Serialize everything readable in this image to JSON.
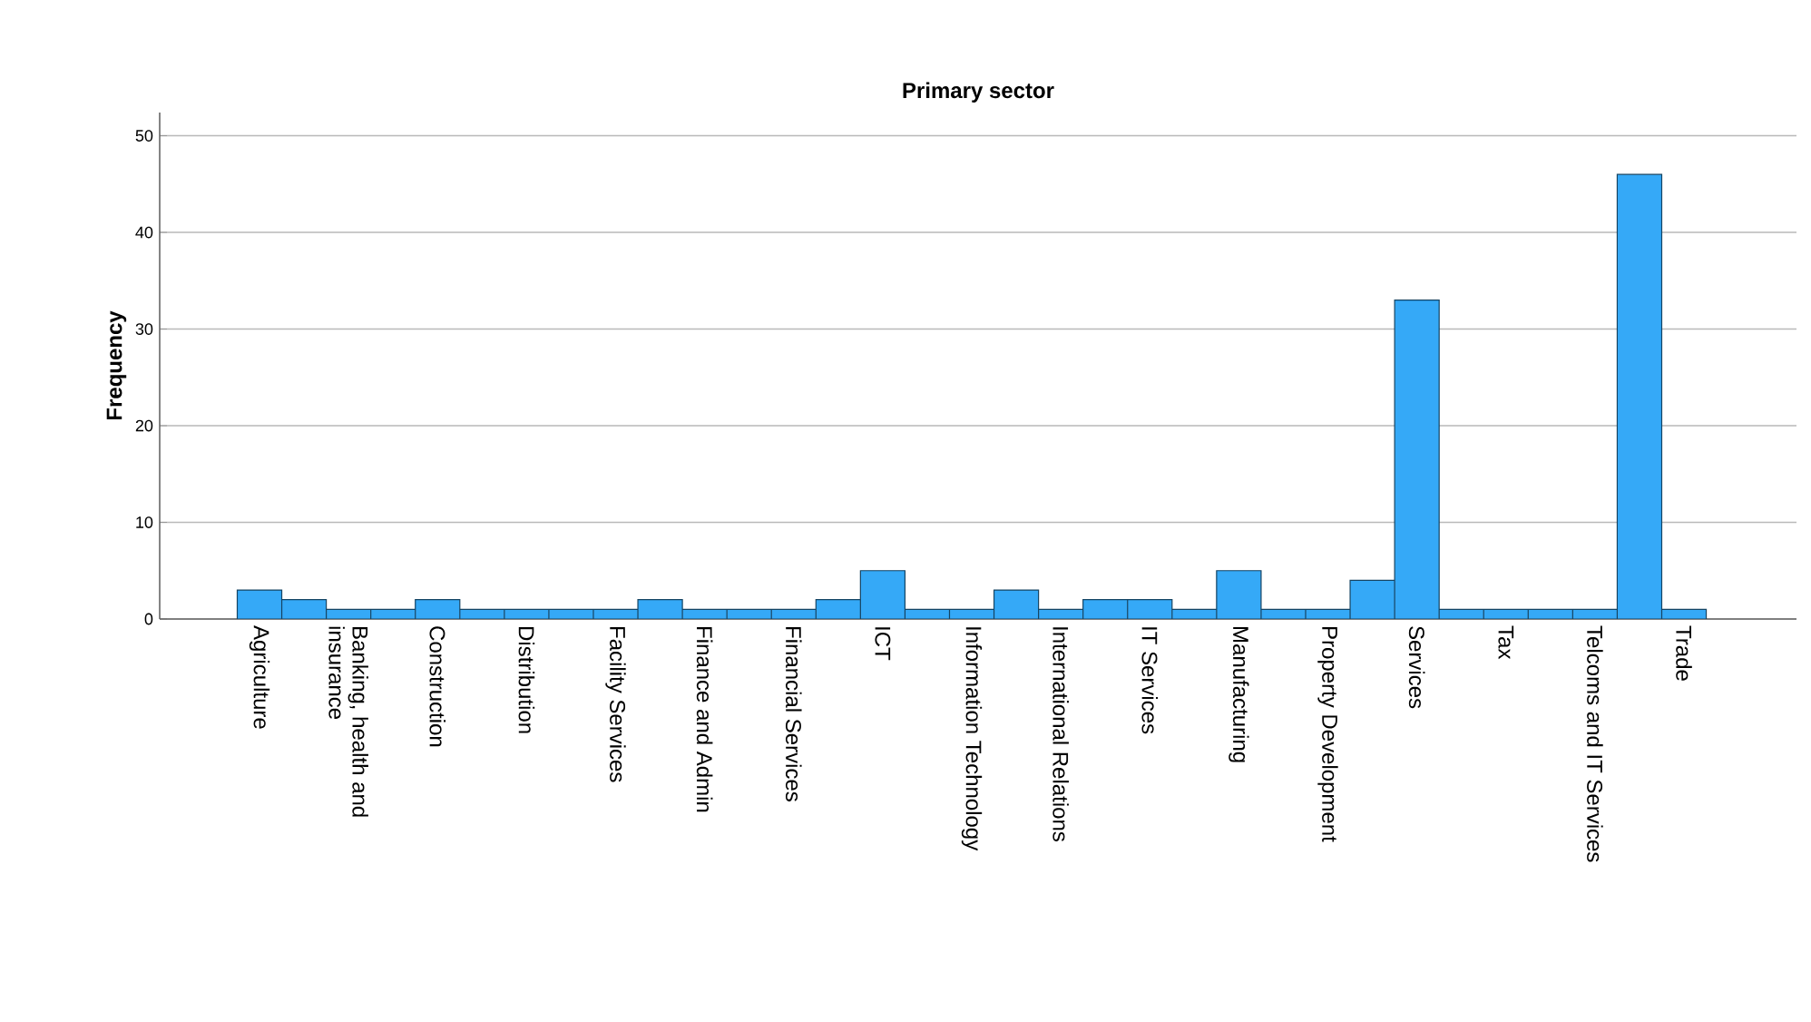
{
  "chart_data": {
    "type": "bar",
    "title": "Primary sector",
    "ylabel": "Frequency",
    "categories": [
      "Agriculture",
      null,
      "Banking, health and insurance",
      null,
      "Construction",
      null,
      "Distribution",
      null,
      "Facility Services",
      null,
      "Finance and Admin",
      null,
      "Financial Services",
      null,
      "ICT",
      null,
      "Information Technology",
      null,
      "International Relations",
      null,
      "IT Services",
      null,
      "Manufacturing",
      null,
      "Property Development",
      null,
      "Services",
      null,
      "Tax",
      null,
      "Telcoms and IT Services",
      null,
      "Trade"
    ],
    "values": [
      3,
      2,
      1,
      1,
      2,
      1,
      1,
      1,
      1,
      2,
      1,
      1,
      1,
      2,
      5,
      1,
      1,
      3,
      1,
      2,
      2,
      1,
      5,
      1,
      1,
      4,
      33,
      1,
      1,
      1,
      1,
      46,
      1
    ],
    "color": "#35a9f7",
    "ylim": [
      0,
      52.4
    ],
    "yticks": [
      0,
      10,
      20,
      30,
      40,
      50
    ],
    "grid": "y"
  }
}
